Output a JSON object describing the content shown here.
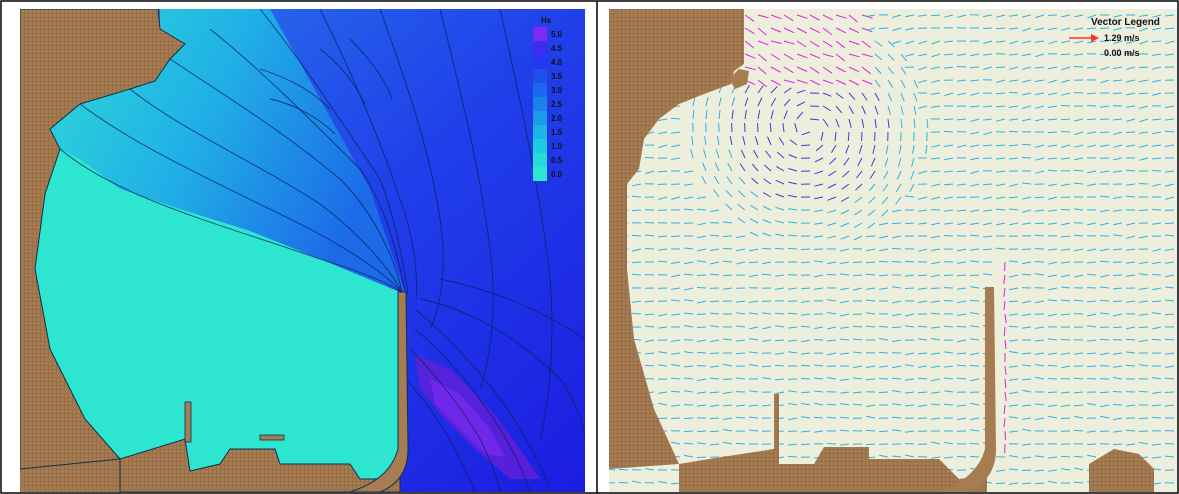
{
  "colors": {
    "land": "#A67C52",
    "land_grid": "#8E6640",
    "calm_water": "#2EE6D0",
    "deep_water": "#1C1CE0",
    "peak_purple": "#6A1FD8",
    "vector_bg": "#EEEEDD",
    "vector_cyan": "#28B4E6",
    "vector_blue": "#3B3BE0",
    "vector_magenta": "#E020E0",
    "legend_arrow": "#FF3030",
    "contour": "#0A2060"
  },
  "wave_height_map": {
    "legend": {
      "title": "Hs",
      "entries": [
        {
          "label": "5.0",
          "color": "#7B2CF0"
        },
        {
          "label": "4.5",
          "color": "#3E2CF0"
        },
        {
          "label": "4.0",
          "color": "#2438F0"
        },
        {
          "label": "3.5",
          "color": "#2050EC"
        },
        {
          "label": "3.0",
          "color": "#1C68EA"
        },
        {
          "label": "2.5",
          "color": "#1A82E8"
        },
        {
          "label": "2.0",
          "color": "#1A9CE6"
        },
        {
          "label": "1.5",
          "color": "#1BB4E4"
        },
        {
          "label": "1.0",
          "color": "#1ECCE0"
        },
        {
          "label": "0.5",
          "color": "#24DCD8"
        },
        {
          "label": "0.0",
          "color": "#2EE6D0"
        }
      ]
    }
  },
  "current_vector_map": {
    "legend": {
      "title": "Vector Legend",
      "max_label": "1.29 m/s",
      "min_label": "0.00 m/s"
    }
  }
}
